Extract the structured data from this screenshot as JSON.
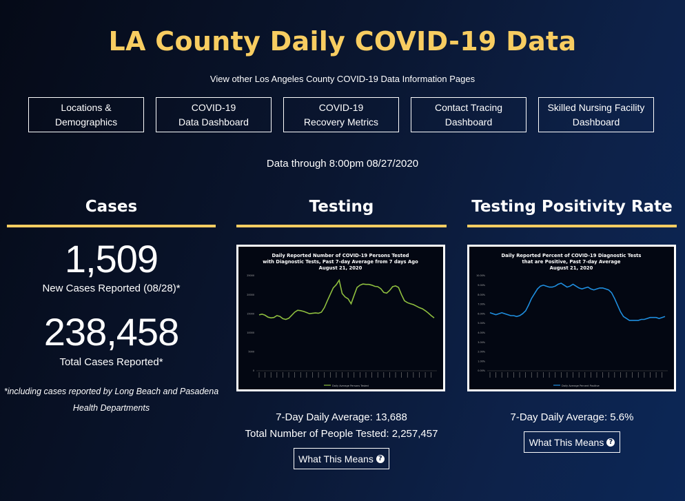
{
  "page": {
    "title": "LA County Daily COVID-19 Data",
    "subtitle": "View other Los Angeles County COVID-19 Data Information Pages",
    "data_through": "Data through 8:00pm 08/27/2020"
  },
  "nav": [
    {
      "line1": "Locations &",
      "line2": "Demographics"
    },
    {
      "line1": "COVID-19",
      "line2": "Data Dashboard"
    },
    {
      "line1": "COVID-19",
      "line2": "Recovery Metrics"
    },
    {
      "line1": "Contact Tracing",
      "line2": "Dashboard"
    },
    {
      "line1": "Skilled Nursing Facility",
      "line2": "Dashboard"
    }
  ],
  "cases": {
    "heading": "Cases",
    "new_value": "1,509",
    "new_label": "New Cases Reported (08/28)*",
    "total_value": "238,458",
    "total_label": "Total Cases Reported*",
    "footnote_line1": "*including cases reported by Long Beach and Pasadena",
    "footnote_line2": "Health Departments"
  },
  "testing": {
    "heading": "Testing",
    "avg": "7-Day Daily Average: 13,688",
    "total": "Total Number of People Tested: 2,257,457",
    "button": "What This Means"
  },
  "positivity": {
    "heading": "Testing Positivity Rate",
    "avg": "7-Day Daily Average: 5.6%",
    "button": "What This Means"
  },
  "icons": {
    "help": "question-circle-icon"
  },
  "colors": {
    "accent": "#f8cd61",
    "testing_line": "#8fbf3f",
    "positivity_line": "#1f8fe0"
  },
  "chart_data": [
    {
      "type": "line",
      "title": "Daily Reported Number of COVID-19 Persons Tested with Diagnostic Tests, Past 7-day Average from 7 days Ago",
      "title_line1": "Daily Reported Number of COVID-19 Persons Tested",
      "title_line2": "with Diagnostic Tests, Past 7-day Average from 7 days Ago",
      "subtitle": "August 21, 2020",
      "ylim": [
        0,
        25000
      ],
      "yticks": [
        "0",
        "5000",
        "10000",
        "15000",
        "20000",
        "25000"
      ],
      "series": [
        {
          "name": "Daily Average Persons Tested",
          "values": [
            14700,
            14900,
            14600,
            14100,
            13900,
            14000,
            14500,
            14300,
            13700,
            13500,
            13800,
            14600,
            15400,
            15900,
            15800,
            15600,
            15300,
            15000,
            15100,
            15200,
            15100,
            15400,
            16600,
            18400,
            20100,
            21800,
            22600,
            23800,
            20300,
            19400,
            18900,
            17600,
            19800,
            21900,
            22500,
            22800,
            22700,
            22700,
            22500,
            22200,
            22100,
            21600,
            20600,
            20400,
            21100,
            22100,
            22300,
            21900,
            20000,
            18400,
            17900,
            17600,
            17400,
            17000,
            16600,
            16300,
            15800,
            15200,
            14500,
            13900
          ]
        }
      ]
    },
    {
      "type": "line",
      "title": "Daily Reported Percent of COVID-19 Diagnostic Tests that are Positive, Past 7-day Average",
      "title_line1": "Daily Reported Percent of COVID-19 Diagnostic Tests",
      "title_line2": "that are Positive, Past 7-day Average",
      "subtitle": "August 21, 2020",
      "ylim": [
        0,
        10
      ],
      "yticks": [
        "0.00%",
        "1.00%",
        "2.00%",
        "3.00%",
        "4.00%",
        "5.00%",
        "6.00%",
        "7.00%",
        "8.00%",
        "9.00%",
        "10.00%"
      ],
      "series": [
        {
          "name": "Daily Average Percent Positive",
          "values": [
            6.1,
            6.0,
            5.9,
            6.0,
            6.1,
            6.0,
            5.9,
            5.8,
            5.8,
            5.7,
            5.8,
            6.0,
            6.3,
            6.9,
            7.6,
            8.1,
            8.6,
            8.9,
            9.0,
            8.9,
            8.8,
            8.8,
            8.9,
            9.1,
            9.2,
            9.0,
            8.8,
            8.9,
            9.1,
            8.9,
            8.7,
            8.6,
            8.7,
            8.8,
            8.6,
            8.5,
            8.6,
            8.7,
            8.7,
            8.6,
            8.5,
            8.2,
            7.6,
            6.9,
            6.2,
            5.7,
            5.5,
            5.3,
            5.3,
            5.3,
            5.3,
            5.4,
            5.4,
            5.5,
            5.6,
            5.6,
            5.6,
            5.5,
            5.6,
            5.7
          ]
        }
      ]
    }
  ]
}
